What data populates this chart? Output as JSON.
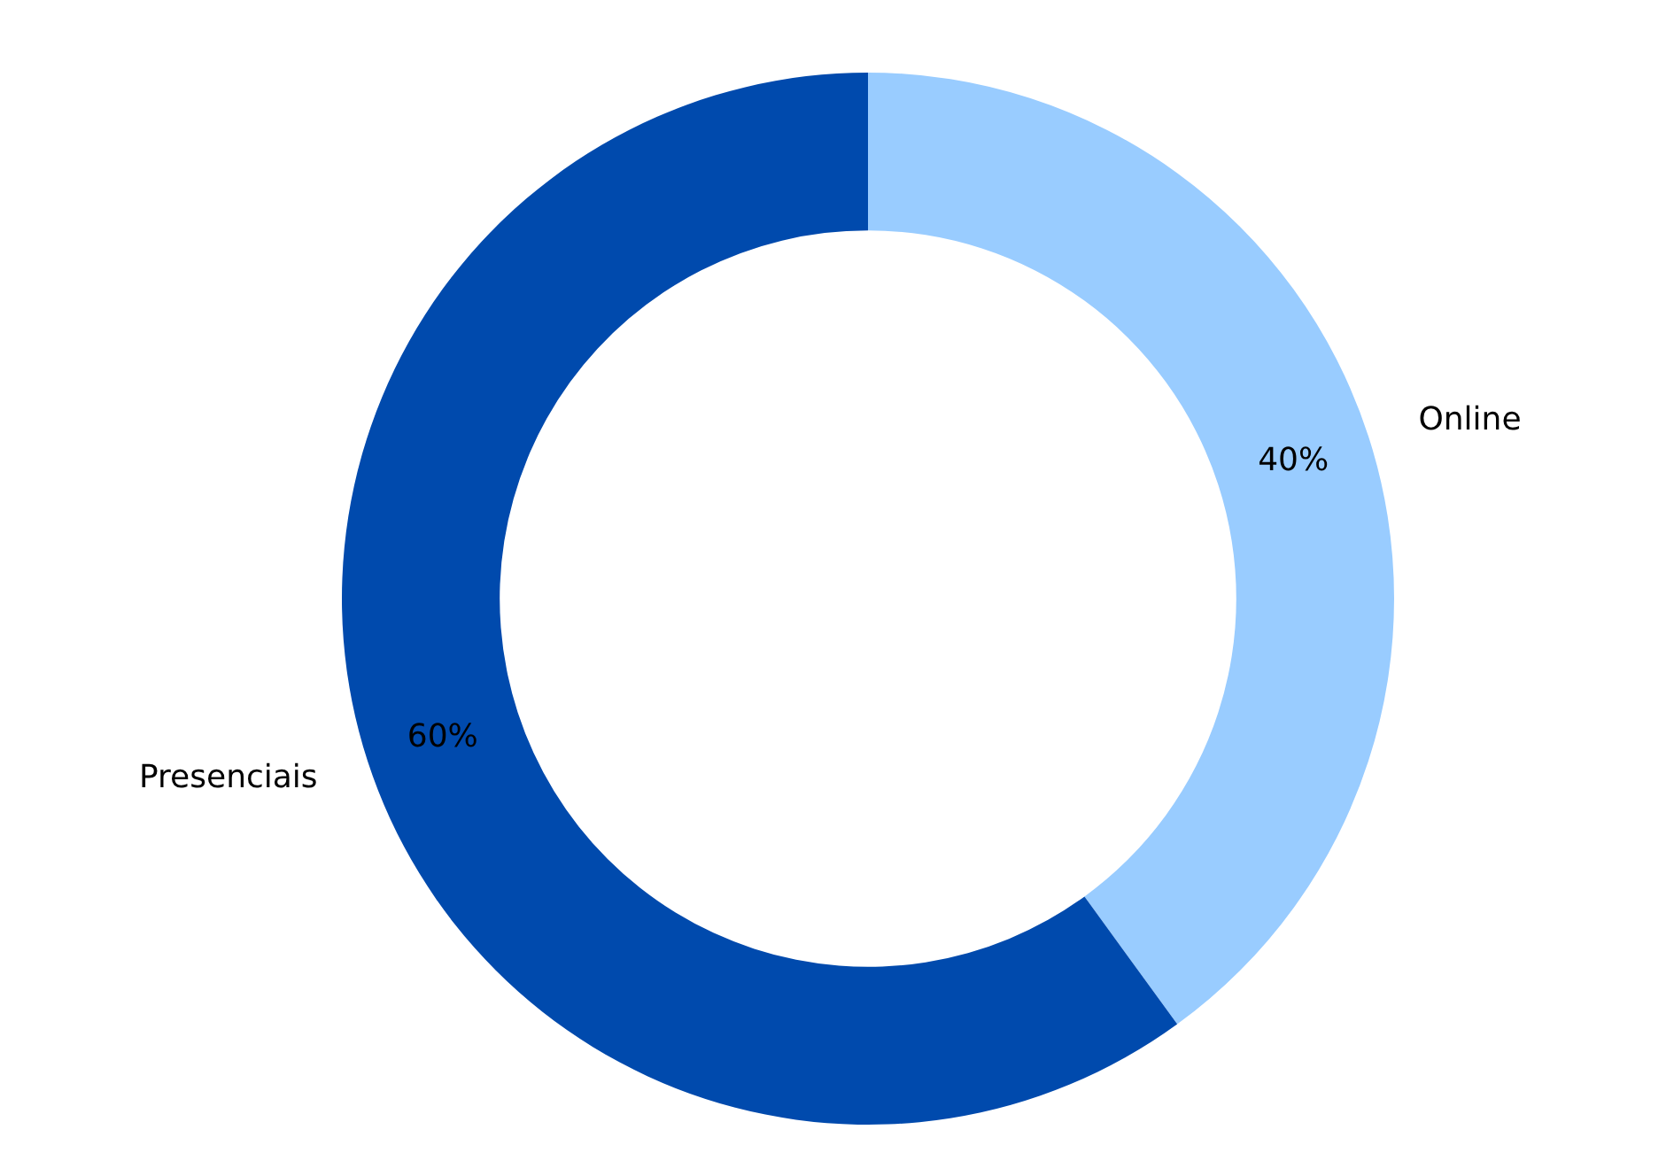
{
  "chart_data": {
    "type": "donut",
    "categories": [
      "Online",
      "Presenciais"
    ],
    "values": [
      40,
      60
    ],
    "colors": [
      "#99ccff",
      "#004aad"
    ],
    "value_labels": [
      "40%",
      "60%"
    ]
  }
}
